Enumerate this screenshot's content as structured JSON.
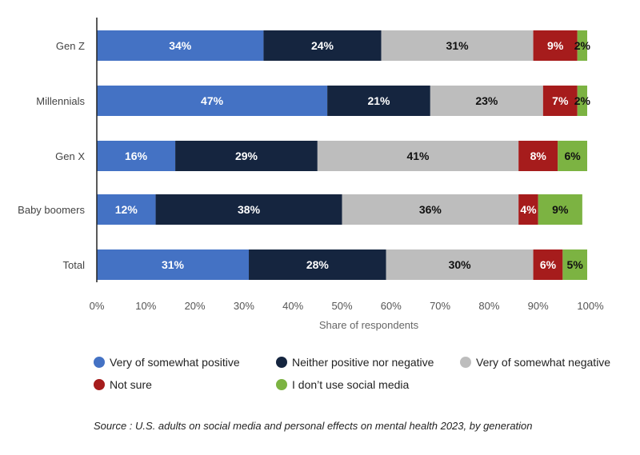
{
  "chart_data": {
    "type": "bar",
    "orientation": "horizontal",
    "stacked": true,
    "categories": [
      "Gen Z",
      "Millennials",
      "Gen X",
      "Baby boomers",
      "Total"
    ],
    "series": [
      {
        "name": "Very of somewhat positive",
        "color": "#4472c4",
        "values": [
          34,
          47,
          16,
          12,
          31
        ],
        "labels": [
          "34%",
          "47%",
          "16%",
          "12%",
          "31%"
        ]
      },
      {
        "name": "Neither positive nor negative",
        "color": "#15253f",
        "values": [
          24,
          21,
          29,
          38,
          28
        ],
        "labels": [
          "24%",
          "21%",
          "29%",
          "38%",
          "28%"
        ]
      },
      {
        "name": "Very of somewhat negative",
        "color": "#bdbdbd",
        "values": [
          31,
          23,
          41,
          36,
          30
        ],
        "labels": [
          "31%",
          "23%",
          "41%",
          "36%",
          "30%"
        ]
      },
      {
        "name": "Not sure",
        "color": "#a61c1c",
        "values": [
          9,
          7,
          8,
          4,
          6
        ],
        "labels": [
          "9%",
          "7%",
          "8%",
          "4%",
          "6%"
        ]
      },
      {
        "name": "I don’t use social media",
        "color": "#7cb342",
        "values": [
          2,
          2,
          6,
          9,
          5
        ],
        "labels": [
          "2%",
          "2%",
          "6%",
          "9%",
          "5%"
        ]
      }
    ],
    "xlim": [
      0,
      100
    ],
    "xticks": [
      "0%",
      "10%",
      "20%",
      "30%",
      "40%",
      "50%",
      "60%",
      "70%",
      "80%",
      "90%",
      "100%"
    ],
    "xlabel": "Share of respondents",
    "ylabel": "",
    "grid": false,
    "legend_position": "bottom"
  },
  "source_note": "Source : U.S. adults on social media and personal effects on mental health 2023, by generation"
}
